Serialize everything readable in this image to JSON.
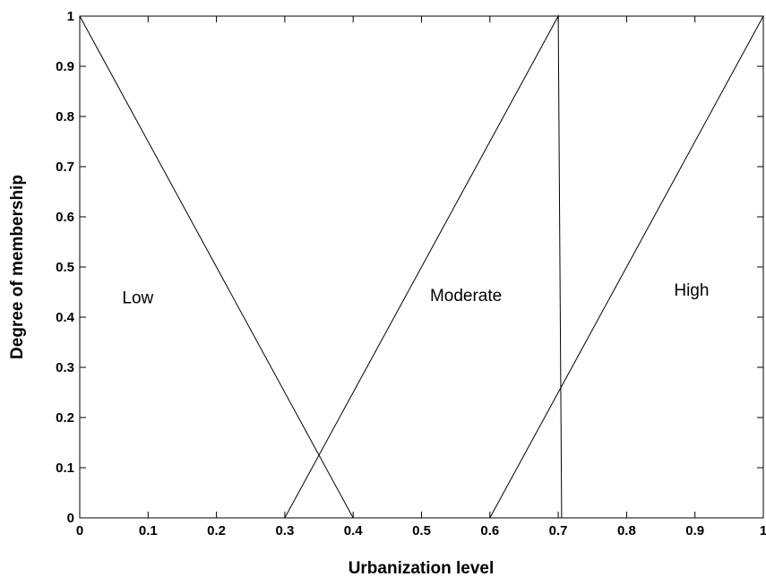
{
  "chart_data": {
    "type": "line",
    "title": "",
    "xlabel": "Urbanization level",
    "ylabel": "Degree of membership",
    "xlim": [
      0,
      1
    ],
    "ylim": [
      0,
      1
    ],
    "xticks": [
      "0",
      "0.1",
      "0.2",
      "0.3",
      "0.4",
      "0.5",
      "0.6",
      "0.7",
      "0.8",
      "0.9",
      "1"
    ],
    "yticks": [
      "0",
      "0.1",
      "0.2",
      "0.3",
      "0.4",
      "0.5",
      "0.6",
      "0.7",
      "0.8",
      "0.9",
      "1"
    ],
    "grid": false,
    "legend": "none",
    "line_color": "#000000",
    "series": [
      {
        "name": "Low",
        "x": [
          0,
          0.4
        ],
        "y": [
          1,
          0
        ],
        "label_at": [
          0.085,
          0.44
        ]
      },
      {
        "name": "Moderate",
        "x": [
          0.3,
          0.7,
          0.705
        ],
        "y": [
          0,
          1,
          0
        ],
        "label_at": [
          0.565,
          0.445
        ]
      },
      {
        "name": "High",
        "x": [
          0.6,
          1
        ],
        "y": [
          0,
          1
        ],
        "label_at": [
          0.895,
          0.455
        ]
      }
    ]
  }
}
